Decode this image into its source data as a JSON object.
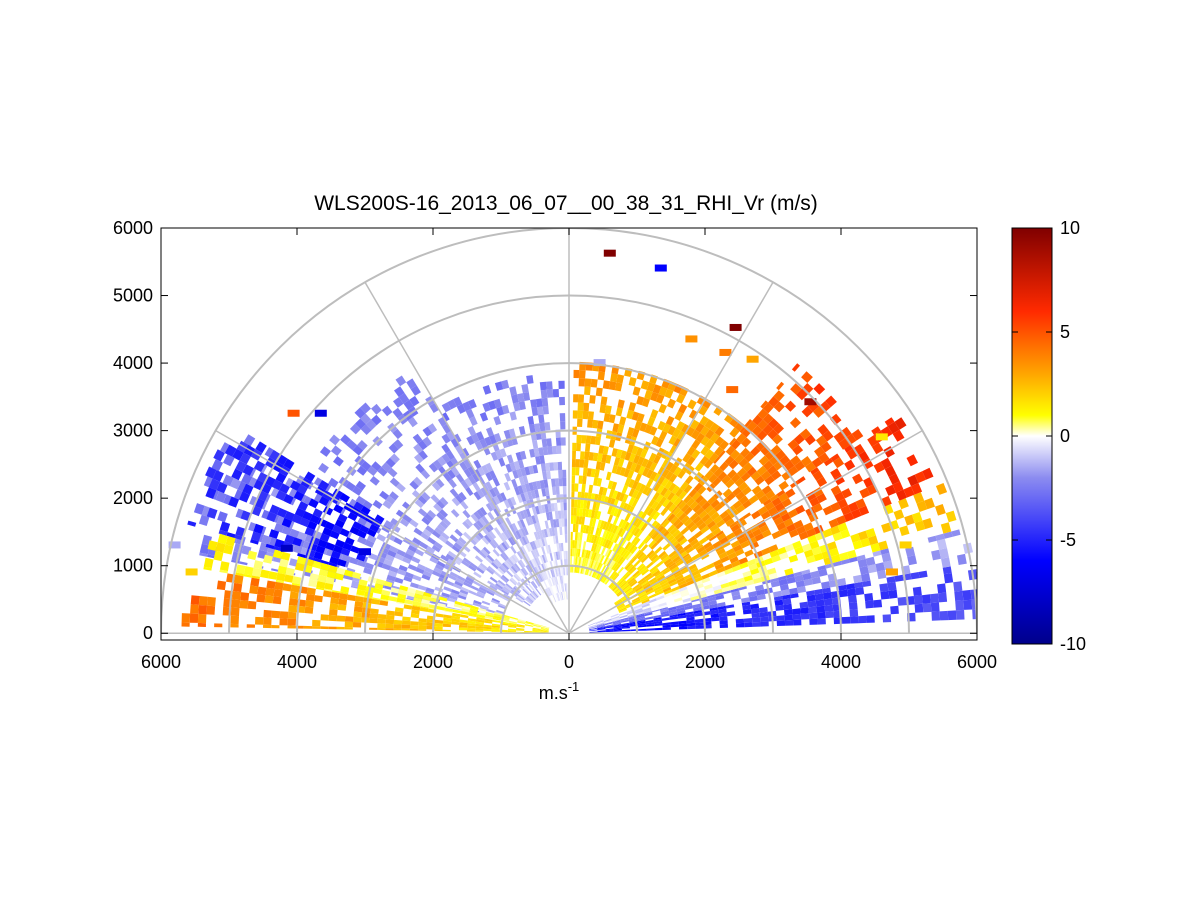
{
  "chart_data": {
    "type": "heatmap",
    "subtype": "polar-sector RHI scan",
    "title": "WLS200S-16_2013_06_07__00_38_31_RHI_Vr (m/s)",
    "xlabel": "m.s",
    "xlabel_exponent": "-1",
    "ylabel": "",
    "x_tick_labels": [
      "6000",
      "4000",
      "2000",
      "0",
      "2000",
      "4000",
      "6000"
    ],
    "x_tick_values": [
      -6000,
      -4000,
      -2000,
      0,
      2000,
      4000,
      6000
    ],
    "y_tick_labels": [
      "0",
      "1000",
      "2000",
      "3000",
      "4000",
      "5000",
      "6000"
    ],
    "y_tick_values": [
      0,
      1000,
      2000,
      3000,
      4000,
      5000,
      6000
    ],
    "xlim": [
      -6000,
      6000
    ],
    "ylim": [
      -100,
      6000
    ],
    "polar_grid": {
      "range_rings": [
        1000,
        2000,
        3000,
        4000,
        5000,
        6000
      ],
      "spokes_deg": [
        0,
        30,
        60,
        90,
        120,
        150,
        180
      ]
    },
    "colorbar": {
      "ticks": [
        "10",
        "5",
        "0",
        "-5",
        "-10"
      ],
      "tick_values": [
        10,
        5,
        0,
        -5,
        -10
      ],
      "clim": [
        -10,
        10
      ],
      "colormap": "blue-white-yellow-red",
      "stops": [
        {
          "value": -10,
          "color": "#00008b"
        },
        {
          "value": -6,
          "color": "#0000ff"
        },
        {
          "value": -2,
          "color": "#8c8cf0"
        },
        {
          "value": 0,
          "color": "#ffffff"
        },
        {
          "value": 1,
          "color": "#ffff00"
        },
        {
          "value": 3,
          "color": "#ffa500"
        },
        {
          "value": 6,
          "color": "#ff2a00"
        },
        {
          "value": 10,
          "color": "#800000"
        }
      ]
    },
    "sectors": [
      {
        "az_from": 2,
        "az_to": 10,
        "r_from": 300,
        "r_to": 6200,
        "v_near": -6,
        "v_far": -3.5,
        "density": 0.85
      },
      {
        "az_from": 10,
        "az_to": 15,
        "r_from": 300,
        "r_to": 6100,
        "v_near": -3,
        "v_far": -1.5,
        "density": 0.75
      },
      {
        "az_from": 15,
        "az_to": 22,
        "r_from": 300,
        "r_to": 5900,
        "v_near": -1,
        "v_far": 2.5,
        "density": 0.7
      },
      {
        "az_from": 22,
        "az_to": 34,
        "r_from": 800,
        "r_to": 5800,
        "v_near": 1.5,
        "v_far": 6.5,
        "density": 0.8
      },
      {
        "az_from": 34,
        "az_to": 50,
        "r_from": 900,
        "r_to": 5200,
        "v_near": 1.5,
        "v_far": 5.5,
        "density": 0.75
      },
      {
        "az_from": 50,
        "az_to": 89,
        "r_from": 900,
        "r_to": 4000,
        "v_near": 0.8,
        "v_far": 3.5,
        "density": 0.8
      },
      {
        "az_from": 91,
        "az_to": 120,
        "r_from": 500,
        "r_to": 3800,
        "v_near": -0.5,
        "v_far": -2.5,
        "density": 0.7
      },
      {
        "az_from": 120,
        "az_to": 148,
        "r_from": 700,
        "r_to": 4500,
        "v_near": -1,
        "v_far": -2.5,
        "density": 0.6
      },
      {
        "az_from": 148,
        "az_to": 168,
        "r_from": 1000,
        "r_to": 5800,
        "v_near": -1.5,
        "v_far": -2.5,
        "density": 0.55
      },
      {
        "az_from": 148,
        "az_to": 164,
        "r_from": 3200,
        "r_to": 5800,
        "v_near": -6,
        "v_far": -4.5,
        "density": 0.55
      },
      {
        "az_from": 164,
        "az_to": 170,
        "r_from": 300,
        "r_to": 5400,
        "v_near": 0.5,
        "v_far": 1.2,
        "density": 0.8
      },
      {
        "az_from": 170,
        "az_to": 179,
        "r_from": 300,
        "r_to": 5700,
        "v_near": 1.2,
        "v_far": 4.5,
        "density": 0.85
      }
    ],
    "isolated_cells": [
      {
        "x": 600,
        "y": 5620,
        "v": 10
      },
      {
        "x": 1350,
        "y": 5400,
        "v": -6
      },
      {
        "x": 2450,
        "y": 4520,
        "v": 10
      },
      {
        "x": 3550,
        "y": 3420,
        "v": 9
      },
      {
        "x": 1800,
        "y": 4350,
        "v": 3.5
      },
      {
        "x": 2300,
        "y": 4150,
        "v": 4
      },
      {
        "x": 2700,
        "y": 4050,
        "v": 3
      },
      {
        "x": 2400,
        "y": 3600,
        "v": 4.5
      },
      {
        "x": 4600,
        "y": 2900,
        "v": 1.5
      },
      {
        "x": 4950,
        "y": 1300,
        "v": 2
      },
      {
        "x": 4750,
        "y": 900,
        "v": 3
      },
      {
        "x": 450,
        "y": 4000,
        "v": -1.5
      },
      {
        "x": -4050,
        "y": 3250,
        "v": 5
      },
      {
        "x": -3650,
        "y": 3250,
        "v": -7
      },
      {
        "x": -3000,
        "y": 1200,
        "v": -7
      },
      {
        "x": -5800,
        "y": 1300,
        "v": -1.5
      },
      {
        "x": -5550,
        "y": 900,
        "v": 2
      },
      {
        "x": -4150,
        "y": 1250,
        "v": -8
      }
    ]
  }
}
